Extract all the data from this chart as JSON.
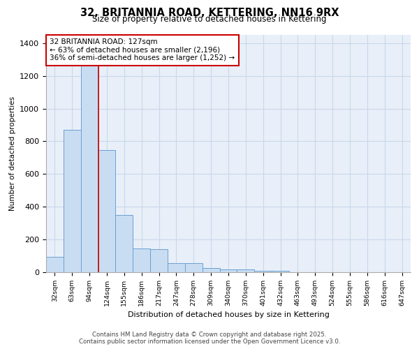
{
  "title_line1": "32, BRITANNIA ROAD, KETTERING, NN16 9RX",
  "title_line2": "Size of property relative to detached houses in Kettering",
  "xlabel": "Distribution of detached houses by size in Kettering",
  "ylabel": "Number of detached properties",
  "categories": [
    "32sqm",
    "63sqm",
    "94sqm",
    "124sqm",
    "155sqm",
    "186sqm",
    "217sqm",
    "247sqm",
    "278sqm",
    "309sqm",
    "340sqm",
    "370sqm",
    "401sqm",
    "432sqm",
    "463sqm",
    "493sqm",
    "524sqm",
    "555sqm",
    "586sqm",
    "616sqm",
    "647sqm"
  ],
  "values": [
    95,
    870,
    1270,
    745,
    350,
    145,
    140,
    55,
    55,
    25,
    15,
    15,
    10,
    10,
    0,
    0,
    0,
    0,
    0,
    0,
    0
  ],
  "bar_color": "#c9ddf2",
  "bar_edge_color": "#6b9fd4",
  "ylim": [
    0,
    1450
  ],
  "yticks": [
    0,
    200,
    400,
    600,
    800,
    1000,
    1200,
    1400
  ],
  "red_line_index": 2.5,
  "annotation_text": "32 BRITANNIA ROAD: 127sqm\n← 63% of detached houses are smaller (2,196)\n36% of semi-detached houses are larger (1,252) →",
  "annotation_box_color": "#ffffff",
  "annotation_box_edge_color": "#cc0000",
  "red_line_color": "#cc0000",
  "grid_color": "#c8d8ec",
  "bg_color": "#e8eff8",
  "footer_line1": "Contains HM Land Registry data © Crown copyright and database right 2025.",
  "footer_line2": "Contains public sector information licensed under the Open Government Licence v3.0."
}
